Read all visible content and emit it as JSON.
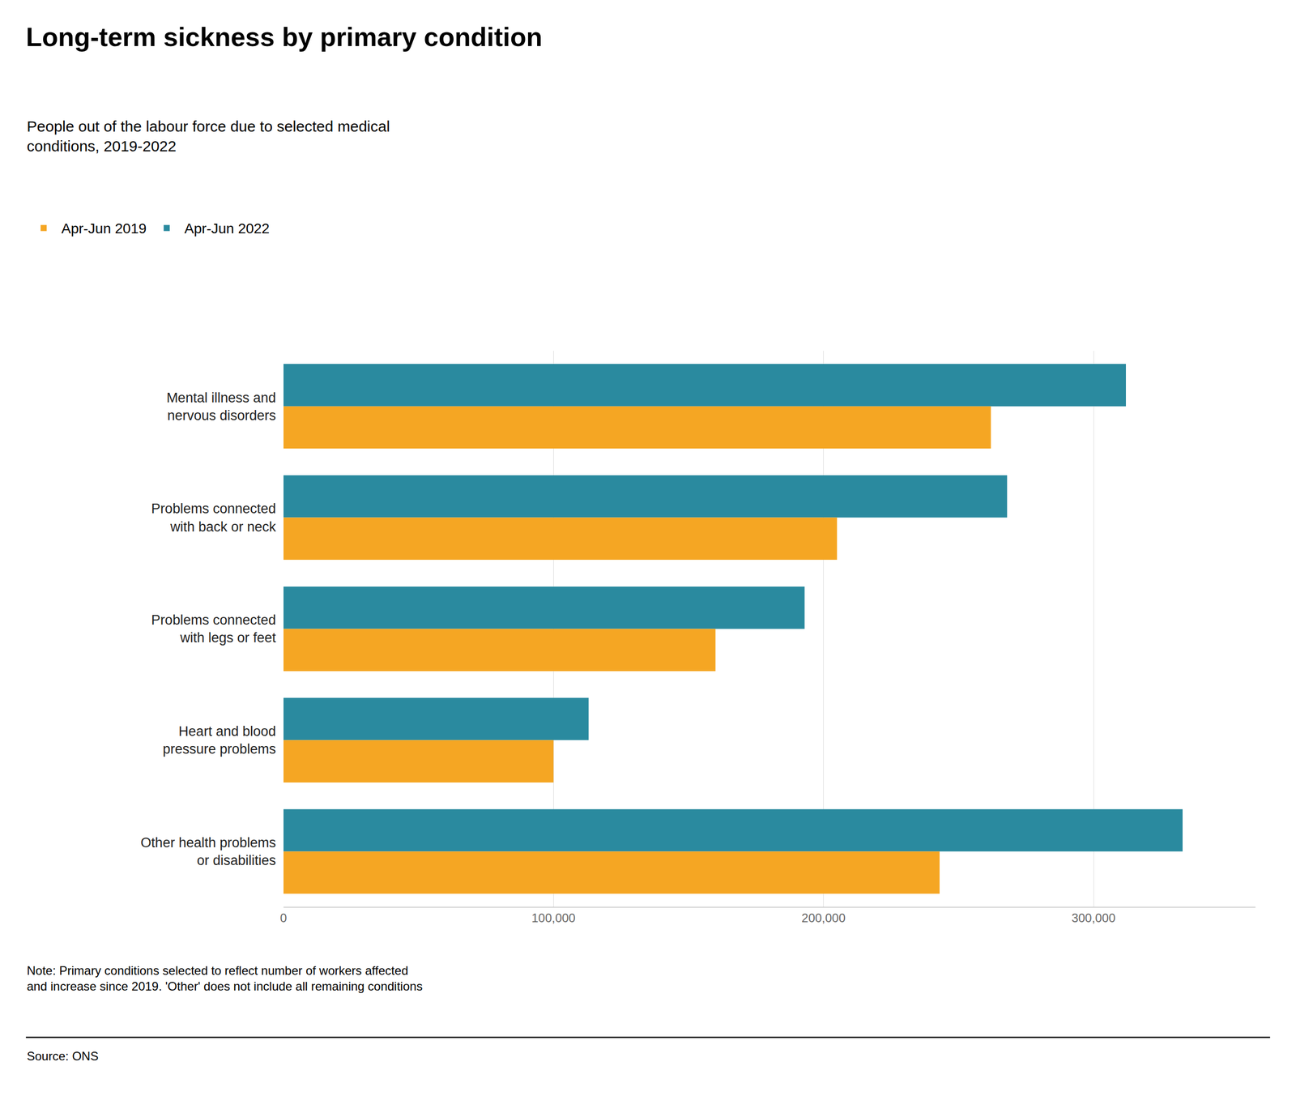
{
  "chart_data": {
    "type": "bar",
    "orientation": "horizontal",
    "title": "Long-term sickness by primary condition",
    "subtitle": "People out of the labour force due to selected medical\nconditions, 2019-2022",
    "note": "Note: Primary conditions selected to reflect number of workers affected\nand increase since 2019. 'Other' does not include all remaining conditions",
    "source": "Source: ONS",
    "categories": [
      "Mental illness and\nnervous disorders",
      "Problems connected\nwith back or neck",
      "Problems connected\nwith legs or feet",
      "Heart and blood\npressure problems",
      "Other health problems\nor disabilities"
    ],
    "series": [
      {
        "name": "Apr-Jun 2022",
        "color": "#2A8A9F",
        "values": [
          312000,
          268000,
          193000,
          113000,
          333000
        ]
      },
      {
        "name": "Apr-Jun 2019",
        "color": "#F5A623",
        "values": [
          262000,
          205000,
          160000,
          100000,
          243000
        ]
      }
    ],
    "xlim": [
      0,
      360000
    ],
    "xticks": [
      0,
      {
        "value": 100000,
        "label": "100,000"
      },
      {
        "value": 200000,
        "label": "200,000"
      },
      {
        "value": 300000,
        "label": "300,000"
      }
    ],
    "grid": true,
    "legend": "top left"
  }
}
